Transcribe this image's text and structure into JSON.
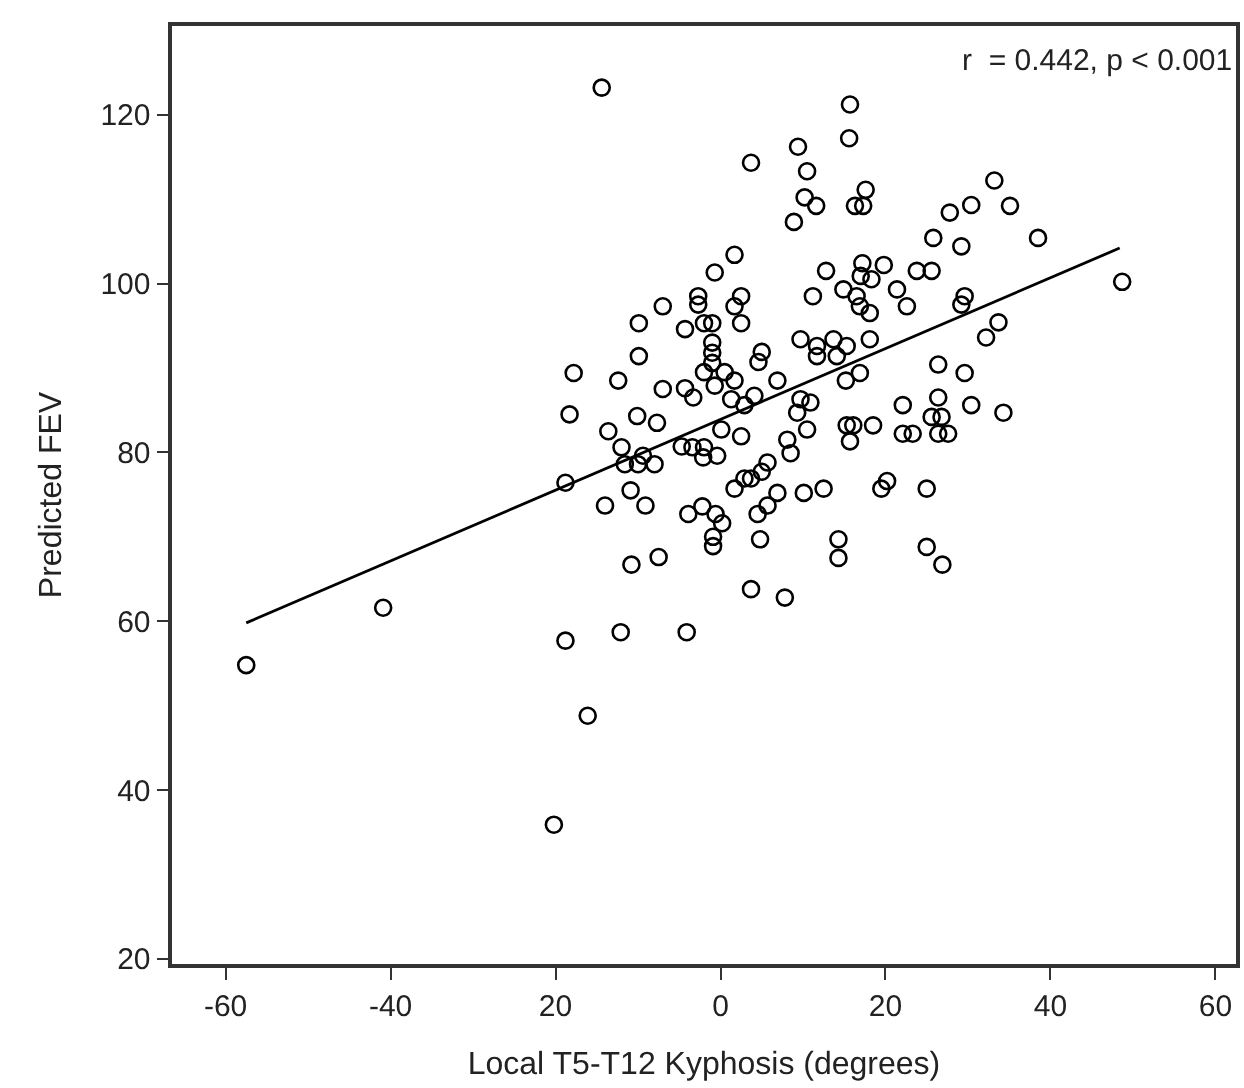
{
  "chart_data": {
    "type": "scatter",
    "xlabel": "Local T5-T12 Kyphosis (degrees)",
    "ylabel": "Predicted FEV",
    "annotations": [
      "r  = 0.442, p < 0.001"
    ],
    "xlim": [
      -66.5,
      62.5
    ],
    "ylim": [
      19.4,
      130.5
    ],
    "xticks": [
      -60,
      -40,
      {
        "value": -20,
        "label": "20"
      },
      0,
      20,
      40,
      60
    ],
    "yticks": [
      20,
      40,
      60,
      80,
      100,
      120
    ],
    "series": [
      {
        "marker": "circle",
        "color": "#000000",
        "x": [
          15.7,
          15.6,
          3.7,
          9.4,
          10.5,
          10.2,
          11.6,
          8.9,
          17.6,
          16.3,
          17.3,
          27.8,
          30.4,
          33.2,
          35.1,
          25.8,
          29.2,
          38.5,
          48.7,
          1.7,
          -0.7,
          -4.3,
          -2.7,
          -2.7,
          -2.0,
          -1.0,
          -1.0,
          -1.0,
          -1.0,
          2.5,
          1.7,
          2.5,
          -4.3,
          -3.3,
          -2.0,
          -0.7,
          0.5,
          1.7,
          1.3,
          4.1,
          2.9,
          0.1,
          2.5,
          -4.7,
          -3.4,
          -2.0,
          -2.1,
          -0.4,
          6.9,
          5.0,
          4.6,
          9.7,
          9.3,
          10.9,
          10.5,
          8.1,
          8.5,
          5.7,
          5.0,
          2.9,
          3.7,
          1.7,
          6.9,
          10.1,
          12.5,
          9.7,
          11.7,
          13.7,
          11.7,
          14.1,
          15.3,
          11.2,
          12.8,
          14.9,
          16.5,
          16.9,
          18.1,
          17.0,
          17.2,
          18.3,
          19.8,
          21.4,
          22.6,
          23.8,
          25.6,
          29.6,
          29.2,
          33.7,
          32.2,
          18.1,
          16.9,
          15.2,
          26.4,
          29.6,
          26.4,
          30.4,
          34.3,
          22.1,
          15.3,
          16.1,
          15.7,
          18.5,
          22.1,
          23.3,
          25.6,
          26.8,
          26.4,
          27.6,
          19.5,
          20.2,
          25.0,
          -3.9,
          -2.2,
          -0.6,
          0.2,
          -0.9,
          -0.9,
          5.7,
          4.5,
          4.8,
          14.3,
          14.3,
          25.0,
          26.9,
          3.7,
          7.8,
          -4.1,
          -57.5,
          -40.9,
          -18.8,
          -16.1,
          -20.2,
          -12.1,
          -10.8,
          -7.5,
          -14.0,
          -10.9,
          -9.1,
          -18.8,
          -14.4,
          -17.8,
          -18.3,
          -12.4,
          -9.9,
          -7.0,
          -9.9,
          -7.0,
          -10.1,
          -7.7,
          -13.6,
          -12.0,
          -9.4,
          -8.0,
          -10.0,
          -11.6
        ],
        "values": [
          121.2,
          117.2,
          114.3,
          116.2,
          113.3,
          110.2,
          109.2,
          107.3,
          111.1,
          109.2,
          109.2,
          108.4,
          109.3,
          112.2,
          109.2,
          105.4,
          104.4,
          105.4,
          100.2,
          103.4,
          101.3,
          94.6,
          98.5,
          97.5,
          95.3,
          95.3,
          93.0,
          91.8,
          90.6,
          98.5,
          97.3,
          95.3,
          87.6,
          86.5,
          89.5,
          87.9,
          89.5,
          88.5,
          86.3,
          86.7,
          85.6,
          82.7,
          81.9,
          80.7,
          80.6,
          80.6,
          79.4,
          79.6,
          88.5,
          91.9,
          90.7,
          86.3,
          84.7,
          85.9,
          82.7,
          81.5,
          79.9,
          78.8,
          77.7,
          76.9,
          76.9,
          75.7,
          75.2,
          75.2,
          75.7,
          93.4,
          92.6,
          93.4,
          91.4,
          91.4,
          92.6,
          98.5,
          101.5,
          99.3,
          98.5,
          97.3,
          96.5,
          100.9,
          102.4,
          100.5,
          102.2,
          99.3,
          97.3,
          101.5,
          101.5,
          98.5,
          97.5,
          95.4,
          93.6,
          93.4,
          89.4,
          88.5,
          90.4,
          89.4,
          86.5,
          85.6,
          84.7,
          85.6,
          83.2,
          83.2,
          81.3,
          83.2,
          82.2,
          82.2,
          84.2,
          84.2,
          82.2,
          82.2,
          75.7,
          76.6,
          75.7,
          72.7,
          73.6,
          72.7,
          71.6,
          70.0,
          68.9,
          73.7,
          72.7,
          69.7,
          69.7,
          67.5,
          68.8,
          66.7,
          63.8,
          62.8,
          58.7,
          54.8,
          61.6,
          57.7,
          48.8,
          35.9,
          58.7,
          66.7,
          67.6,
          73.7,
          75.5,
          73.7,
          76.4,
          123.2,
          89.4,
          84.5,
          88.5,
          95.3,
          97.3,
          91.4,
          87.5,
          84.3,
          83.5,
          82.5,
          80.6,
          79.6,
          78.6,
          78.6,
          78.6
        ]
      },
      {
        "type": "line",
        "marker": "none",
        "line_style": "solid",
        "color": "#000000",
        "x": [
          -57.5,
          48.4
        ],
        "values": [
          59.8,
          104.2
        ]
      }
    ]
  }
}
